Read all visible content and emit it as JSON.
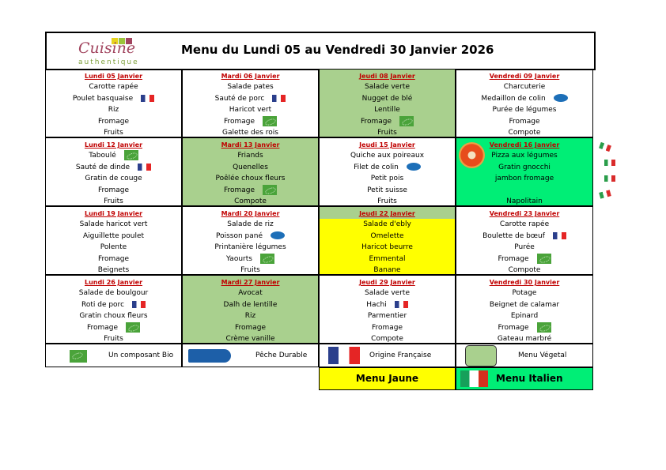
{
  "header": {
    "title": "Menu du Lundi 05 au Vendredi 30 Janvier 2026",
    "logo_text_1": "Cuisine",
    "logo_text_2": "authentique"
  },
  "colors": {
    "vegetal": "#a9d08e",
    "jaune": "#ffff00",
    "italien": "#00ee76",
    "date": "#c00000"
  },
  "weeks": [
    [
      {
        "date": "Lundi 05 Janvier",
        "bg": "",
        "items": [
          {
            "text": "Carotte rapée"
          },
          {
            "text": "Poulet basquaise",
            "icon": "flag-fr"
          },
          {
            "text": "Riz"
          },
          {
            "text": "Fromage"
          },
          {
            "text": "Fruits"
          }
        ]
      },
      {
        "date": "Mardi 06 Janvier",
        "bg": "",
        "items": [
          {
            "text": "Salade pates"
          },
          {
            "text": "Sauté de porc",
            "icon": "flag-fr"
          },
          {
            "text": "Haricot vert"
          },
          {
            "text": "Fromage",
            "icon": "bio"
          },
          {
            "text": "Galette des rois"
          }
        ]
      },
      {
        "date": "Jeudi 08 Janvier",
        "bg": "vegetal",
        "items": [
          {
            "text": "Salade verte"
          },
          {
            "text": "Nugget de blé"
          },
          {
            "text": "Lentille"
          },
          {
            "text": "Fromage",
            "icon": "bio"
          },
          {
            "text": "Fruits"
          }
        ]
      },
      {
        "date": "Vendredi 09 Janvier",
        "bg": "",
        "items": [
          {
            "text": "Charcuterie"
          },
          {
            "text": "Medaillon de colin",
            "icon": "msc"
          },
          {
            "text": "Purée de légumes"
          },
          {
            "text": "Fromage"
          },
          {
            "text": "Compote"
          }
        ]
      }
    ],
    [
      {
        "date": "Lundi 12 Janvier",
        "bg": "",
        "items": [
          {
            "text": "Taboulé",
            "icon": "bio"
          },
          {
            "text": "Sauté de dinde",
            "icon": "flag-fr"
          },
          {
            "text": "Gratin de couge"
          },
          {
            "text": "Fromage"
          },
          {
            "text": "Fruits"
          }
        ]
      },
      {
        "date": "Mardi 13 Janvier",
        "bg": "vegetal",
        "items": [
          {
            "text": "Friands"
          },
          {
            "text": "Quenelles"
          },
          {
            "text": "Poêlée choux fleurs"
          },
          {
            "text": "Fromage",
            "icon": "bio"
          },
          {
            "text": "Compote"
          }
        ]
      },
      {
        "date": "Jeudi 15 Janvier",
        "bg": "",
        "items": [
          {
            "text": "Quiche aux poireaux"
          },
          {
            "text": "Filet de colin",
            "icon": "msc"
          },
          {
            "text": "Petit pois"
          },
          {
            "text": "Petit suisse"
          },
          {
            "text": "Fruits"
          }
        ]
      },
      {
        "date": "Vendredi 16 Janvier",
        "bg": "italien",
        "pizza": true,
        "items": [
          {
            "text": "Pizza aux légumes"
          },
          {
            "text": "Gratin gnocchi"
          },
          {
            "text": "jambon fromage"
          },
          {
            "text": ""
          },
          {
            "text": "Napolitain"
          }
        ]
      }
    ],
    [
      {
        "date": "Lundi 19 Janvier",
        "bg": "",
        "items": [
          {
            "text": "Salade haricot vert"
          },
          {
            "text": "Aiguillette poulet"
          },
          {
            "text": "Polente"
          },
          {
            "text": "Fromage"
          },
          {
            "text": "Beignets"
          }
        ]
      },
      {
        "date": "Mardi 20 Janvier",
        "bg": "",
        "items": [
          {
            "text": "Salade de riz"
          },
          {
            "text": "Poisson pané",
            "icon": "msc"
          },
          {
            "text": "Printanière légumes"
          },
          {
            "text": "Yaourts",
            "icon": "bio"
          },
          {
            "text": "Fruits"
          }
        ]
      },
      {
        "date": "Jeudi 22 Janvier",
        "bg": "jaune",
        "items": [
          {
            "text": "Salade d'ebly"
          },
          {
            "text": "Omelette"
          },
          {
            "text": "Haricot beurre"
          },
          {
            "text": "Emmental"
          },
          {
            "text": "Banane"
          }
        ]
      },
      {
        "date": "Vendredi 23 Janvier",
        "bg": "",
        "items": [
          {
            "text": "Carotte rapée"
          },
          {
            "text": "Boulette de bœuf",
            "icon": "flag-fr"
          },
          {
            "text": "Purée"
          },
          {
            "text": "Fromage",
            "icon": "bio"
          },
          {
            "text": "Compote"
          }
        ]
      }
    ],
    [
      {
        "date": "Lundi 26 Janvier",
        "bg": "",
        "items": [
          {
            "text": "Salade de boulgour"
          },
          {
            "text": "Roti de porc",
            "icon": "flag-fr"
          },
          {
            "text": "Gratin choux fleurs"
          },
          {
            "text": "Fromage",
            "icon": "bio"
          },
          {
            "text": "Fruits"
          }
        ]
      },
      {
        "date": "Mardi 27 Janvier",
        "bg": "vegetal",
        "items": [
          {
            "text": "Avocat"
          },
          {
            "text": "Dalh de lentille"
          },
          {
            "text": "Riz"
          },
          {
            "text": "Fromage"
          },
          {
            "text": "Crème vanille"
          }
        ]
      },
      {
        "date": "Jeudi 29 Janvier",
        "bg": "",
        "items": [
          {
            "text": "Salade verte"
          },
          {
            "text": "Hachi",
            "icon": "flag-fr"
          },
          {
            "text": "Parmentier"
          },
          {
            "text": "Fromage"
          },
          {
            "text": "Compote"
          }
        ]
      },
      {
        "date": "Vendredi 30 Janvier",
        "bg": "",
        "items": [
          {
            "text": "Potage"
          },
          {
            "text": "Beignet de calamar"
          },
          {
            "text": "Epinard"
          },
          {
            "text": "Fromage",
            "icon": "bio"
          },
          {
            "text": "Gateau marbré"
          }
        ]
      }
    ]
  ],
  "legend": [
    {
      "label": "Un composant Bio",
      "icon": "bio"
    },
    {
      "label": "Pêche Durable",
      "icon": "msc-label",
      "logo_text": "PÊCHE DURABLE MSC"
    },
    {
      "label": "Origine Française",
      "icon": "flag-fr"
    },
    {
      "label": "Menu Végetal",
      "icon": "vegetal-swatch"
    }
  ],
  "bottom": {
    "jaune": "Menu Jaune",
    "italien": "Menu Italien"
  }
}
